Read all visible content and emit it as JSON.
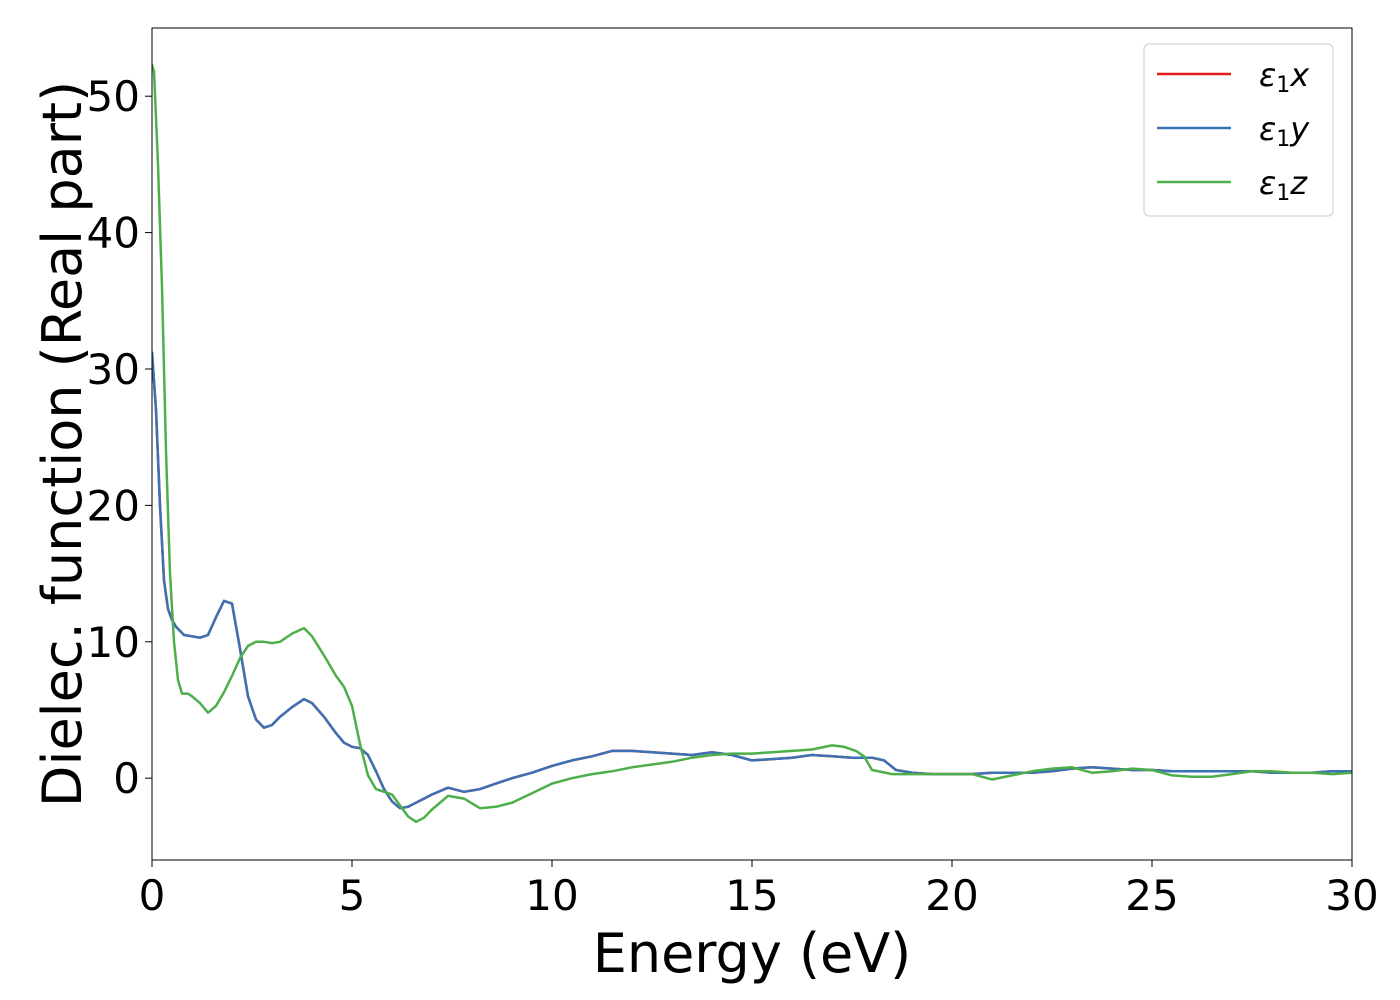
{
  "chart_data": {
    "type": "line",
    "title": "",
    "xlabel": "Energy (eV)",
    "ylabel": "Dielec. function (Real part)",
    "xlim": [
      0,
      30
    ],
    "ylim": [
      -6,
      55
    ],
    "xticks": [
      0,
      5,
      10,
      15,
      20,
      25,
      30
    ],
    "xtick_labels": [
      "0",
      "5",
      "10",
      "15",
      "20",
      "25",
      "30"
    ],
    "yticks": [
      0,
      10,
      20,
      30,
      40,
      50
    ],
    "ytick_labels": [
      "0",
      "10",
      "20",
      "30",
      "40",
      "50"
    ],
    "grid": false,
    "legend_position": "top-right",
    "series": [
      {
        "name": "ε₁x",
        "legend_sub": "1",
        "legend_var": "x",
        "color": "#e41a1c",
        "x": [
          0,
          0.1,
          0.2,
          0.3,
          0.4,
          0.5,
          0.6,
          0.8,
          1.0,
          1.2,
          1.4,
          1.6,
          1.8,
          2.0,
          2.2,
          2.4,
          2.6,
          2.8,
          3.0,
          3.2,
          3.5,
          3.8,
          4.0,
          4.3,
          4.6,
          4.8,
          5.0,
          5.2,
          5.4,
          5.6,
          5.8,
          6.0,
          6.2,
          6.4,
          6.6,
          6.8,
          7.0,
          7.4,
          7.8,
          8.2,
          8.6,
          9.0,
          9.5,
          10.0,
          10.5,
          11.0,
          11.5,
          12.0,
          12.5,
          13.0,
          13.5,
          14.0,
          14.5,
          15.0,
          15.5,
          16.0,
          16.5,
          17.0,
          17.5,
          18.0,
          18.3,
          18.6,
          19.0,
          19.5,
          20.0,
          20.5,
          21.0,
          21.5,
          22.0,
          22.5,
          23.0,
          23.5,
          24.0,
          24.5,
          25.0,
          25.5,
          26.0,
          26.5,
          27.0,
          27.5,
          28.0,
          28.5,
          29.0,
          29.5,
          30.0
        ],
        "y": [
          31.2,
          27,
          20,
          14.5,
          12.4,
          11.6,
          11.1,
          10.5,
          10.4,
          10.3,
          10.5,
          11.8,
          13.0,
          12.8,
          9.5,
          6.0,
          4.3,
          3.7,
          3.9,
          4.5,
          5.2,
          5.8,
          5.5,
          4.5,
          3.3,
          2.6,
          2.3,
          2.2,
          1.7,
          0.5,
          -0.8,
          -1.7,
          -2.2,
          -2.1,
          -1.8,
          -1.5,
          -1.2,
          -0.7,
          -1.0,
          -0.8,
          -0.4,
          0.0,
          0.4,
          0.9,
          1.3,
          1.6,
          2.0,
          2.0,
          1.9,
          1.8,
          1.7,
          1.9,
          1.7,
          1.3,
          1.4,
          1.5,
          1.7,
          1.6,
          1.5,
          1.5,
          1.3,
          0.6,
          0.4,
          0.3,
          0.3,
          0.3,
          0.4,
          0.4,
          0.4,
          0.5,
          0.7,
          0.8,
          0.7,
          0.6,
          0.6,
          0.5,
          0.5,
          0.5,
          0.5,
          0.5,
          0.4,
          0.4,
          0.4,
          0.5,
          0.5
        ]
      },
      {
        "name": "ε₁y",
        "legend_sub": "1",
        "legend_var": "y",
        "color": "#3a72b5",
        "x": [
          0,
          0.1,
          0.2,
          0.3,
          0.4,
          0.5,
          0.6,
          0.8,
          1.0,
          1.2,
          1.4,
          1.6,
          1.8,
          2.0,
          2.2,
          2.4,
          2.6,
          2.8,
          3.0,
          3.2,
          3.5,
          3.8,
          4.0,
          4.3,
          4.6,
          4.8,
          5.0,
          5.2,
          5.4,
          5.6,
          5.8,
          6.0,
          6.2,
          6.4,
          6.6,
          6.8,
          7.0,
          7.4,
          7.8,
          8.2,
          8.6,
          9.0,
          9.5,
          10.0,
          10.5,
          11.0,
          11.5,
          12.0,
          12.5,
          13.0,
          13.5,
          14.0,
          14.5,
          15.0,
          15.5,
          16.0,
          16.5,
          17.0,
          17.5,
          18.0,
          18.3,
          18.6,
          19.0,
          19.5,
          20.0,
          20.5,
          21.0,
          21.5,
          22.0,
          22.5,
          23.0,
          23.5,
          24.0,
          24.5,
          25.0,
          25.5,
          26.0,
          26.5,
          27.0,
          27.5,
          28.0,
          28.5,
          29.0,
          29.5,
          30.0
        ],
        "y": [
          31.2,
          27,
          20,
          14.5,
          12.4,
          11.6,
          11.1,
          10.5,
          10.4,
          10.3,
          10.5,
          11.8,
          13.0,
          12.8,
          9.5,
          6.0,
          4.3,
          3.7,
          3.9,
          4.5,
          5.2,
          5.8,
          5.5,
          4.5,
          3.3,
          2.6,
          2.3,
          2.2,
          1.7,
          0.5,
          -0.8,
          -1.7,
          -2.2,
          -2.1,
          -1.8,
          -1.5,
          -1.2,
          -0.7,
          -1.0,
          -0.8,
          -0.4,
          0.0,
          0.4,
          0.9,
          1.3,
          1.6,
          2.0,
          2.0,
          1.9,
          1.8,
          1.7,
          1.9,
          1.7,
          1.3,
          1.4,
          1.5,
          1.7,
          1.6,
          1.5,
          1.5,
          1.3,
          0.6,
          0.4,
          0.3,
          0.3,
          0.3,
          0.4,
          0.4,
          0.4,
          0.5,
          0.7,
          0.8,
          0.7,
          0.6,
          0.6,
          0.5,
          0.5,
          0.5,
          0.5,
          0.5,
          0.4,
          0.4,
          0.4,
          0.5,
          0.5
        ]
      },
      {
        "name": "ε₁z",
        "legend_sub": "1",
        "legend_var": "z",
        "color": "#4daf4a",
        "x": [
          0,
          0.05,
          0.15,
          0.25,
          0.35,
          0.45,
          0.55,
          0.65,
          0.75,
          0.9,
          1.0,
          1.2,
          1.4,
          1.6,
          1.8,
          2.0,
          2.2,
          2.4,
          2.6,
          2.8,
          3.0,
          3.2,
          3.5,
          3.8,
          4.0,
          4.3,
          4.6,
          4.8,
          5.0,
          5.2,
          5.4,
          5.6,
          5.8,
          6.0,
          6.2,
          6.4,
          6.6,
          6.8,
          7.0,
          7.4,
          7.8,
          8.2,
          8.6,
          9.0,
          9.5,
          10.0,
          10.5,
          11.0,
          11.5,
          12.0,
          12.5,
          13.0,
          13.5,
          14.0,
          14.5,
          15.0,
          15.5,
          16.0,
          16.5,
          17.0,
          17.3,
          17.6,
          17.8,
          18.0,
          18.5,
          19.0,
          19.5,
          20.0,
          20.5,
          21.0,
          21.5,
          22.0,
          22.5,
          23.0,
          23.5,
          24.0,
          24.5,
          25.0,
          25.5,
          26.0,
          26.5,
          27.0,
          27.5,
          28.0,
          28.5,
          29.0,
          29.5,
          30.0
        ],
        "y": [
          52.3,
          51.8,
          45,
          36,
          24,
          15,
          10,
          7.2,
          6.2,
          6.2,
          6.0,
          5.5,
          4.8,
          5.3,
          6.3,
          7.5,
          8.8,
          9.7,
          10.0,
          10.0,
          9.9,
          10.0,
          10.6,
          11.0,
          10.4,
          9.0,
          7.5,
          6.7,
          5.3,
          2.5,
          0.2,
          -0.8,
          -1.0,
          -1.2,
          -2.0,
          -2.8,
          -3.2,
          -2.9,
          -2.3,
          -1.3,
          -1.5,
          -2.2,
          -2.1,
          -1.8,
          -1.1,
          -0.4,
          0.0,
          0.3,
          0.5,
          0.8,
          1.0,
          1.2,
          1.5,
          1.7,
          1.8,
          1.8,
          1.9,
          2.0,
          2.1,
          2.4,
          2.3,
          2.0,
          1.6,
          0.6,
          0.3,
          0.3,
          0.3,
          0.3,
          0.3,
          -0.1,
          0.2,
          0.5,
          0.7,
          0.8,
          0.4,
          0.5,
          0.7,
          0.6,
          0.2,
          0.1,
          0.1,
          0.3,
          0.5,
          0.5,
          0.4,
          0.4,
          0.3,
          0.4
        ]
      }
    ]
  }
}
